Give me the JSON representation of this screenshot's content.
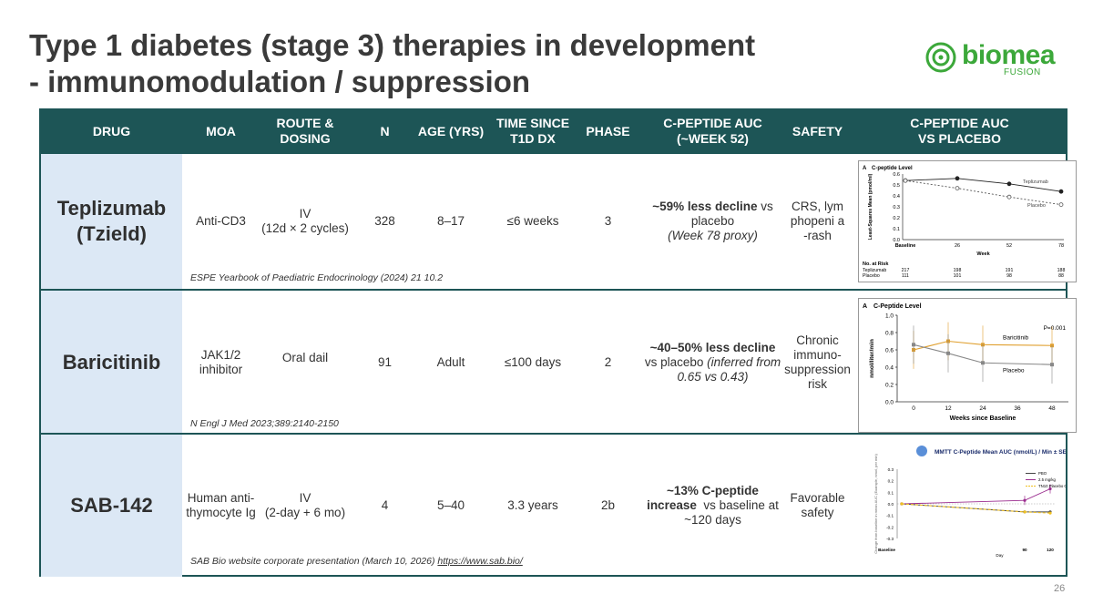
{
  "title": {
    "line1": "Type 1 diabetes (stage 3) therapies in development",
    "line2": "- immunomodulation / suppression"
  },
  "logo": {
    "word": "biomea",
    "sub": "FUSION",
    "color": "#3ca83a"
  },
  "colors": {
    "header_bg": "#1d5556",
    "drug_cell_bg": "#dce8f5"
  },
  "headers": {
    "drug": "DRUG",
    "moa": "MOA",
    "route1": "ROUTE &",
    "route2": "DOSING",
    "n": "N",
    "age": "AGE (YRS)",
    "time1": "TIME SINCE",
    "time2": "T1D DX",
    "phase": "PHASE",
    "cpep1": "C-PEPTIDE AUC",
    "cpep2": "(~WEEK 52)",
    "safety": "SAFETY",
    "vs1": "C-PEPTIDE AUC",
    "vs2": "VS PLACEBO"
  },
  "rows": [
    {
      "drug1": "Teplizumab",
      "drug2": "(Tzield)",
      "moa": "Anti-CD3",
      "route1": "IV",
      "route2": "(12d × 2 cycles)",
      "n": "328",
      "age": "8–17",
      "time": "≤6 weeks",
      "phase": "3",
      "cpep_bold": "~59% less decline",
      "cpep_rest": " vs placebo",
      "cpep_ital": "(Week 78 proxy)",
      "safety": "CRS, lymphopeni a-rash",
      "citation": "ESPE Yearbook of Paediatric Endocrinology (2024) 21 10.2"
    },
    {
      "drug1": "Baricitinib",
      "moa1": "JAK1/2",
      "moa2": "inhibitor",
      "route": "Oral dail",
      "n": "91",
      "age": "Adult",
      "time": "≤100 days",
      "phase": "2",
      "cpep_bold": "~40–50% less decline",
      "cpep_rest": "vs placebo ",
      "cpep_ital": "(inferred from",
      "cpep_last": "0.65 vs 0.43)",
      "safety1": "Chronic",
      "safety2": "immuno-",
      "safety3": "suppression",
      "safety4": "risk",
      "citation": "N Engl J Med 2023;389:2140-2150"
    },
    {
      "drug1": "SAB-142",
      "moa1": "Human anti-",
      "moa2": "thymocyte Ig",
      "route1": "IV",
      "route2": "(2-day + 6 mo)",
      "n": "4",
      "age": "5–40",
      "time": "3.3 years",
      "phase": "2b",
      "cpep_bold1": "~13% C-peptide",
      "cpep_bold2": "increase",
      "cpep_rest": "  vs baseline at",
      "cpep_last": "~120 days",
      "safety1": "Favorable",
      "safety2": "safety",
      "citation": "SAB Bio website corporate presentation (March 10, 2026) ",
      "citation_url": "https://www.sab.bio/"
    }
  ],
  "chart_data": [
    {
      "type": "line",
      "panel": "A",
      "title": "C-peptide Level",
      "xlabel": "Week",
      "ylabel": "Least-Squares Mean (pmol/ml)",
      "x": [
        "Baseline",
        "26",
        "52",
        "78"
      ],
      "ylim": [
        0,
        0.6
      ],
      "yticks": [
        "0.0",
        "0.1",
        "0.2",
        "0.3",
        "0.4",
        "0.5",
        "0.6"
      ],
      "series": [
        {
          "name": "Teplizumab",
          "values": [
            0.54,
            0.56,
            0.51,
            0.44
          ],
          "color": "#222222"
        },
        {
          "name": "Placebo",
          "values": [
            0.54,
            0.47,
            0.39,
            0.32
          ],
          "color": "#555555"
        }
      ],
      "at_risk_label": "No. at Risk",
      "at_risk": [
        {
          "name": "Teplizumab",
          "values": [
            "217",
            "198",
            "191",
            "188"
          ]
        },
        {
          "name": "Placebo",
          "values": [
            "111",
            "101",
            "98",
            "88"
          ]
        }
      ]
    },
    {
      "type": "line",
      "panel": "A",
      "title": "C-Peptide Level",
      "xlabel": "Weeks since Baseline",
      "ylabel": "nmol/liter/min",
      "x": [
        "0",
        "12",
        "24",
        "36",
        "48"
      ],
      "ylim": [
        0,
        1.0
      ],
      "yticks": [
        "0.0",
        "0.2",
        "0.4",
        "0.6",
        "0.8",
        "1.0"
      ],
      "annotation": "P=0.001",
      "series": [
        {
          "name": "Baricitinib",
          "values": [
            0.6,
            0.7,
            0.66,
            null,
            0.65
          ],
          "color": "#e0a030"
        },
        {
          "name": "Placebo",
          "values": [
            0.66,
            0.56,
            0.45,
            null,
            0.43
          ],
          "color": "#888888"
        }
      ]
    },
    {
      "type": "line",
      "title": "MMTT C-Peptide Mean AUC (nmol/L) / Min ± SEM",
      "ylabel": "Change from baseline in mean AUC (Example, nmol, per min)",
      "xlabel": "Day",
      "x": [
        "Baseline",
        "90",
        "120"
      ],
      "ylim": [
        -0.3,
        0.3
      ],
      "yticks": [
        "0.3",
        "0.2",
        "0.1",
        "0.0",
        "-0.1",
        "-0.2",
        "-0.3"
      ],
      "series": [
        {
          "name": "PBO",
          "values": [
            0.0,
            -0.07,
            -0.07
          ],
          "color": "#444444"
        },
        {
          "name": "2.5 mg/kg",
          "values": [
            0.0,
            0.03,
            0.13
          ],
          "color": "#9b2d8f"
        },
        {
          "name": "TN10 Placebo Cohort",
          "values": [
            0.0,
            -0.07,
            -0.08
          ],
          "color": "#f0c020"
        }
      ]
    }
  ],
  "page_number": "26"
}
